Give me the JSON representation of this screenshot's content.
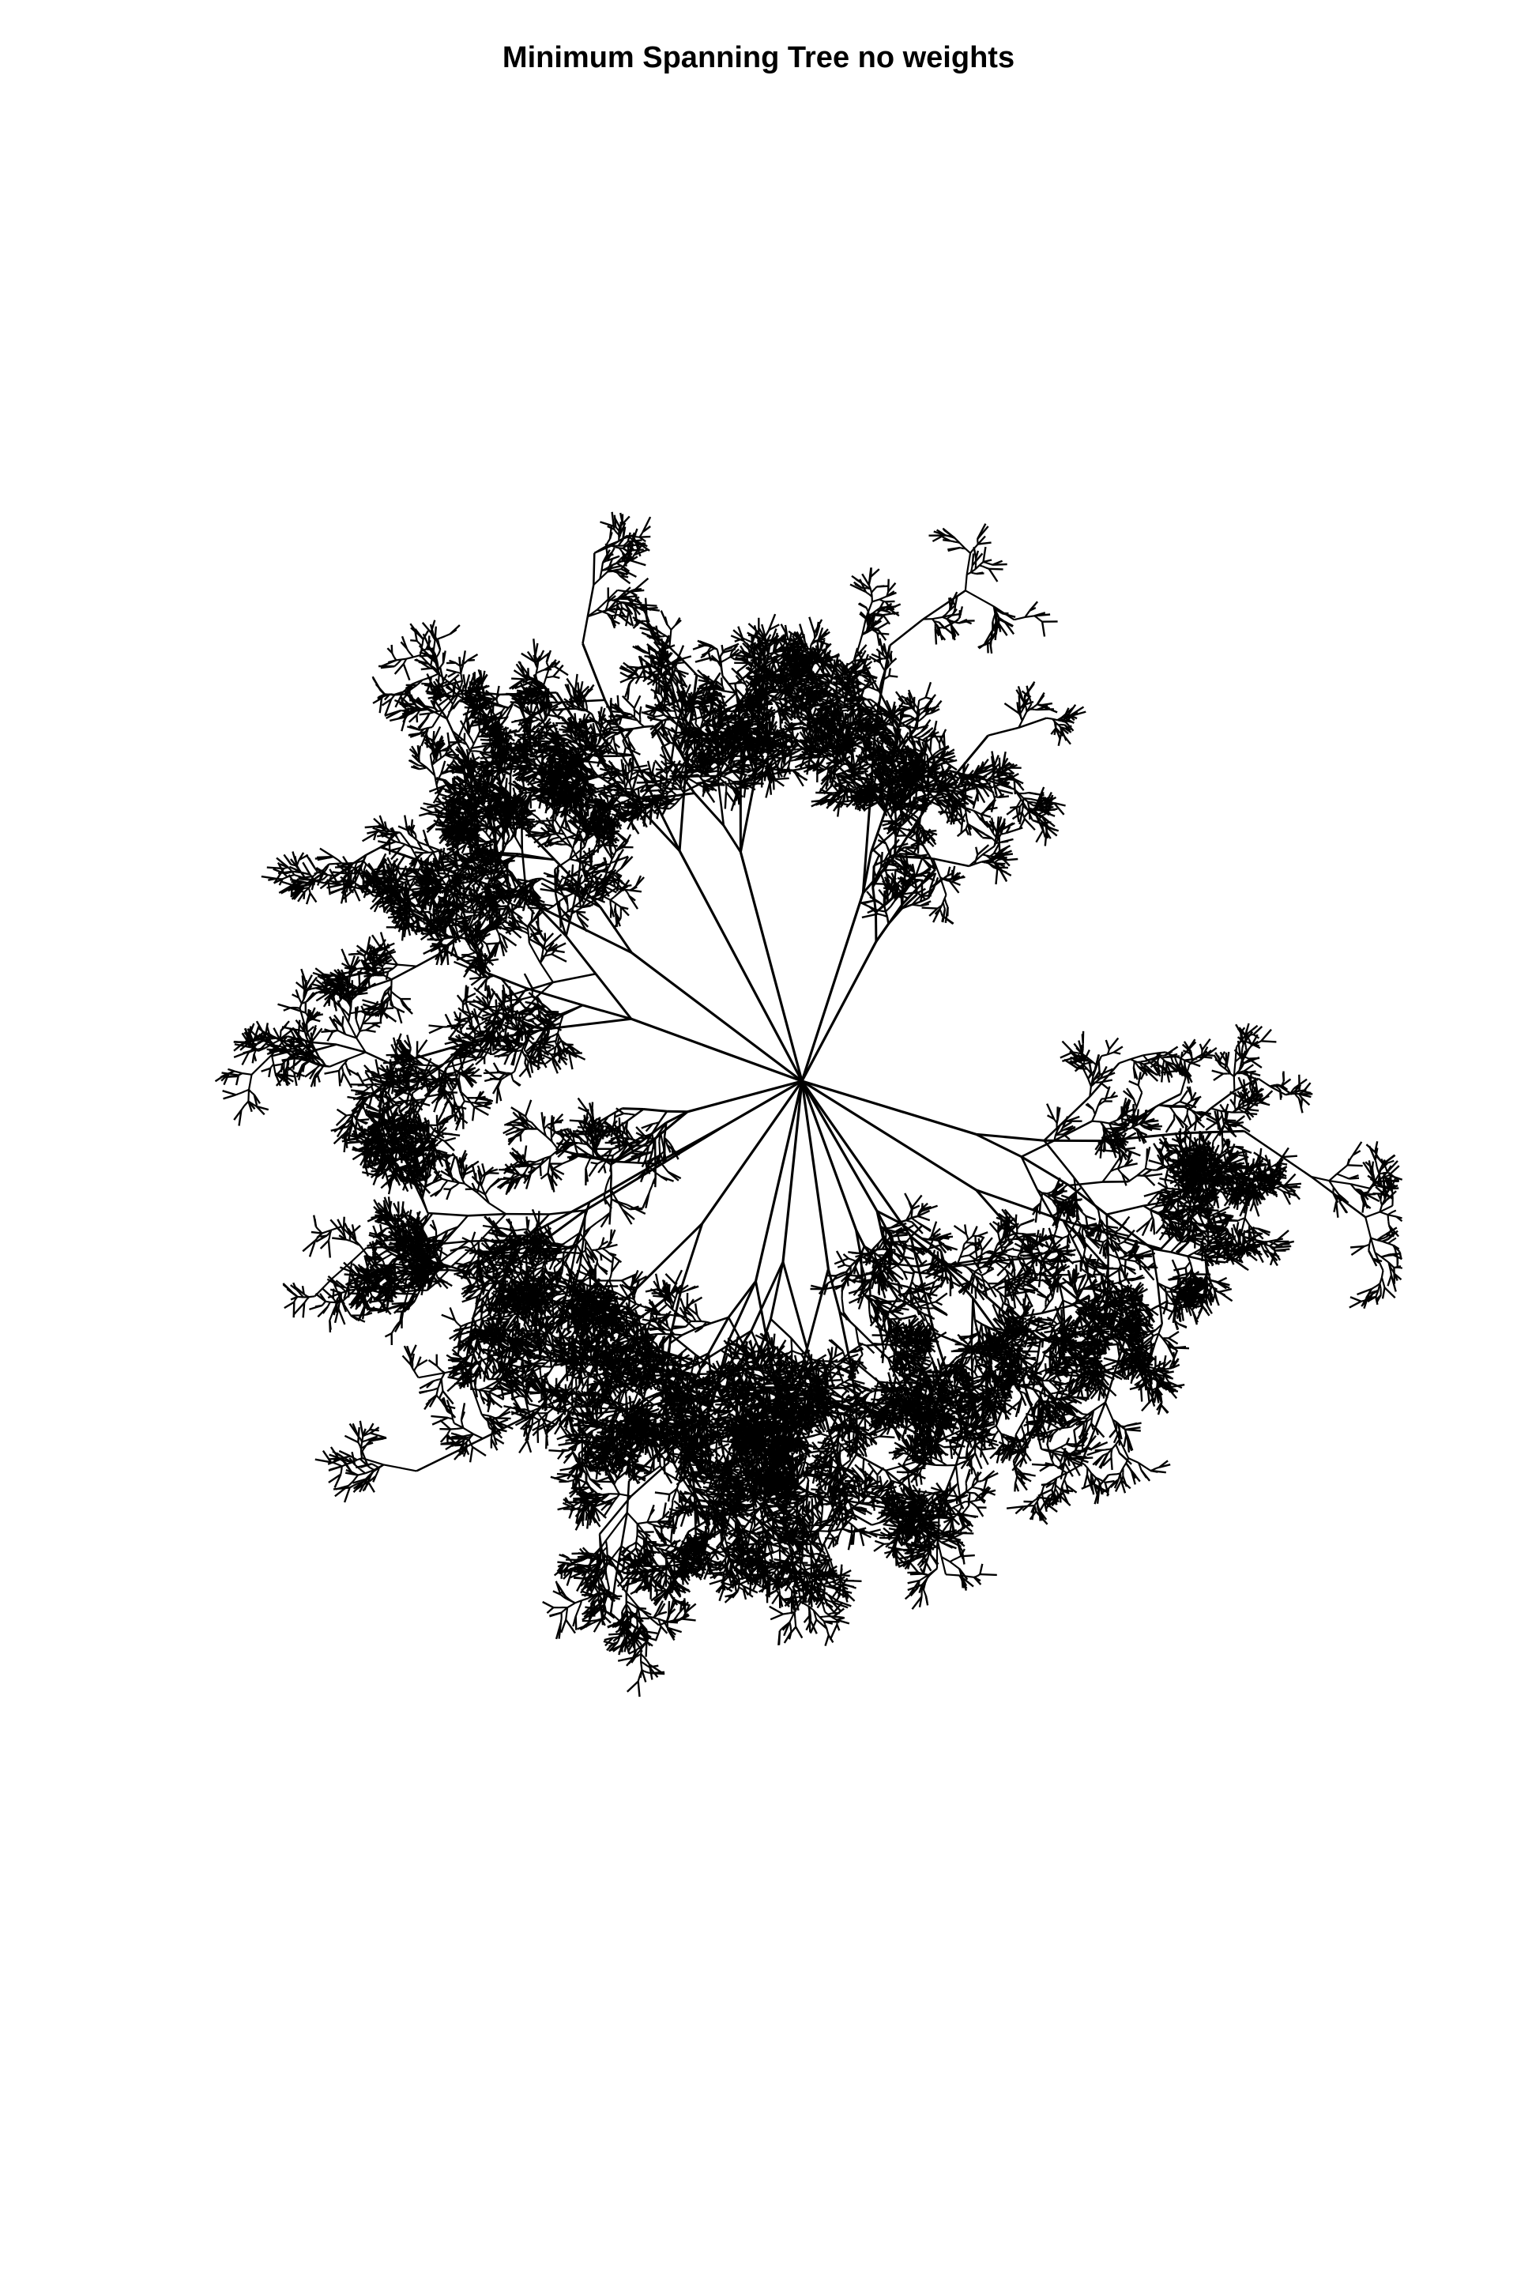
{
  "title": "Minimum Spanning Tree no weights",
  "colors": {
    "background": "#ffffff",
    "edge": "#000000"
  },
  "tree": {
    "weighted": false,
    "seed": 20240611
  }
}
